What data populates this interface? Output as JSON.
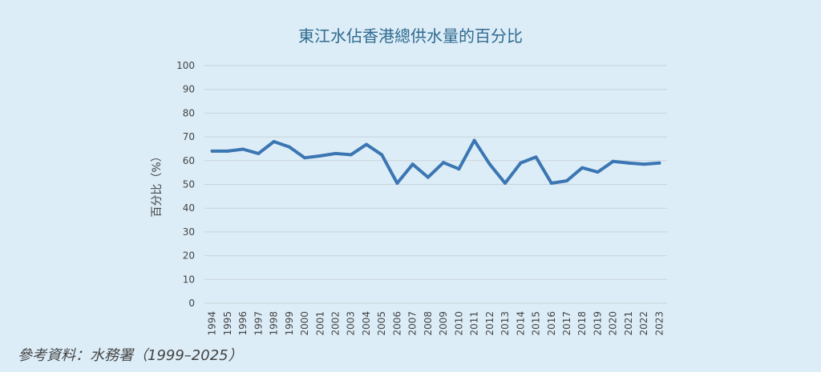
{
  "source": "參考資料：水務署（1999–2025）",
  "chart_data": {
    "type": "line",
    "title": "東江水佔香港總供水量的百分比",
    "ylabel": "百分比（%）",
    "xlabel": "",
    "ylim": [
      0,
      100
    ],
    "yticks": [
      0,
      10,
      20,
      30,
      40,
      50,
      60,
      70,
      80,
      90,
      100
    ],
    "grid": true,
    "line_color": "#3b76b3",
    "categories": [
      "1994",
      "1995",
      "1996",
      "1997",
      "1998",
      "1999",
      "2000",
      "2001",
      "2002",
      "2003",
      "2004",
      "2005",
      "2006",
      "2007",
      "2008",
      "2009",
      "2010",
      "2011",
      "2012",
      "2013",
      "2014",
      "2015",
      "2016",
      "2017",
      "2018",
      "2019",
      "2020",
      "2021",
      "2022",
      "2023"
    ],
    "series": [
      {
        "values": [
          64,
          64,
          64.8,
          63,
          68,
          65.8,
          61.2,
          62,
          63,
          62.5,
          66.8,
          62.5,
          50.5,
          58.5,
          53,
          59.2,
          56.5,
          68.5,
          58.5,
          50.5,
          59,
          61.5,
          50.5,
          51.5,
          57,
          55.2,
          59.7,
          59,
          58.5,
          59
        ]
      }
    ]
  }
}
